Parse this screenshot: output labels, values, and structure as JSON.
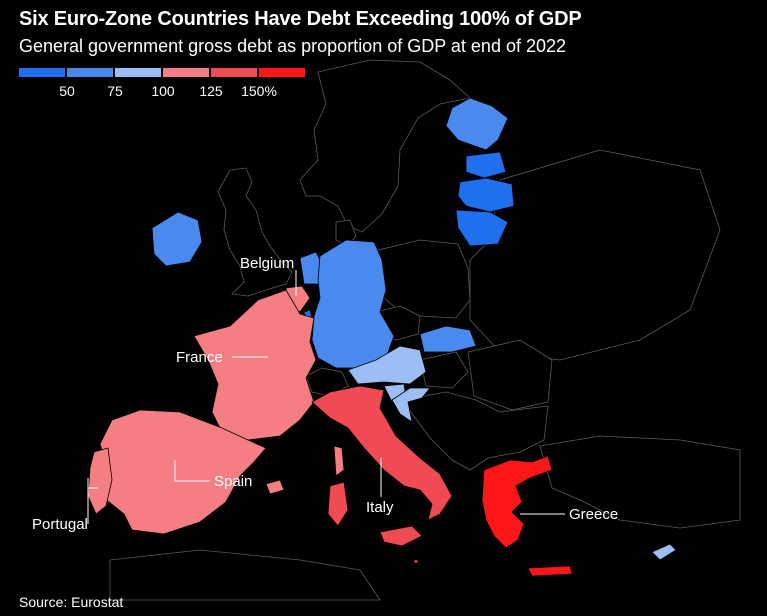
{
  "title": "Six Euro-Zone Countries Have Debt Exceeding 100% of GDP",
  "subtitle": "General government gross debt as proportion of GDP at end of 2022",
  "legend": {
    "colors": [
      "#1f6fef",
      "#4a8aee",
      "#9dbdf5",
      "#f47e82",
      "#f04a52",
      "#ff1616"
    ],
    "ticks": [
      "50",
      "75",
      "100",
      "125",
      "150%"
    ]
  },
  "country_labels": {
    "belgium": "Belgium",
    "france": "France",
    "spain": "Spain",
    "portugal": "Portugal",
    "italy": "Italy",
    "greece": "Greece"
  },
  "colors": {
    "background": "#000000",
    "non_eurozone": "#000000",
    "border": "#5a5a5a",
    "blue_50_75": "#4a8aee",
    "light_blue_75_100": "#9dbdf5",
    "pink_100_125": "#f47e82",
    "red_125_150": "#f04a52",
    "bright_red_150": "#ff1616"
  },
  "source": "Source: Eurostat"
}
